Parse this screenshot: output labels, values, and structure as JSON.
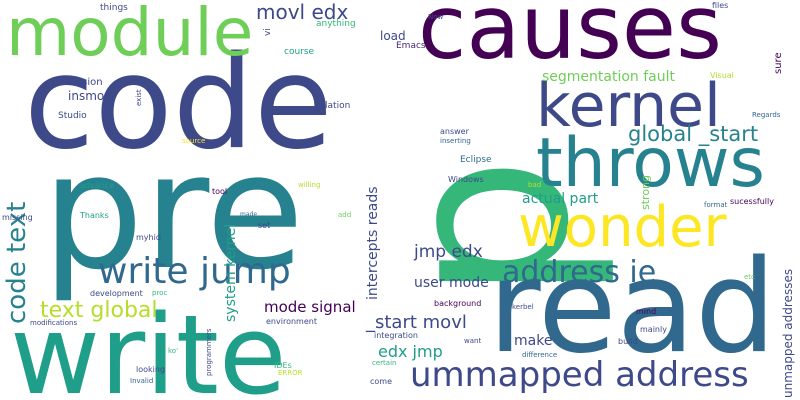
{
  "background": "#ffffff",
  "palette": {
    "dark_purple": "#440154",
    "indigo": "#482878",
    "slate_blue": "#3e4989",
    "steel_blue": "#31688e",
    "teal_blue": "#26828e",
    "teal": "#1f9e89",
    "green_teal": "#35b779",
    "green": "#6ece58",
    "lime": "#b5de2b",
    "yellow": "#fde725"
  },
  "words": [
    {
      "text": "p",
      "color": "#35b779"
    },
    {
      "text": "pre",
      "color": "#26828e"
    },
    {
      "text": "code",
      "color": "#3e4989"
    },
    {
      "text": "causes",
      "color": "#440154"
    },
    {
      "text": "write",
      "color": "#1f9e89"
    },
    {
      "text": "read",
      "color": "#31688e"
    },
    {
      "text": "module",
      "color": "#6ece58"
    },
    {
      "text": "kernel",
      "color": "#3e4989"
    },
    {
      "text": "throws",
      "color": "#26828e"
    },
    {
      "text": "wonder",
      "color": "#fde725"
    },
    {
      "text": "code text",
      "color": "#26828e"
    },
    {
      "text": "write jump",
      "color": "#31688e"
    },
    {
      "text": "address ie",
      "color": "#31688e"
    },
    {
      "text": "ummapped address",
      "color": "#3e4989"
    },
    {
      "text": "movl edx",
      "color": "#3e4989"
    },
    {
      "text": "global _start",
      "color": "#26828e"
    },
    {
      "text": "_start movl",
      "color": "#3e4989"
    },
    {
      "text": "text global",
      "color": "#b5de2b"
    },
    {
      "text": "segmentation fault",
      "color": "#6ece58"
    },
    {
      "text": "jmp edx",
      "color": "#3e4989"
    },
    {
      "text": "edx jmp",
      "color": "#1f9e89"
    },
    {
      "text": "intercepts reads",
      "color": "#3e4989"
    },
    {
      "text": "system kernel",
      "color": "#1f9e89"
    },
    {
      "text": "mode signal",
      "color": "#440154"
    },
    {
      "text": "actual part",
      "color": "#1f9e89"
    },
    {
      "text": "user mode",
      "color": "#3e4989"
    },
    {
      "text": "unmapped addresses",
      "color": "#3e4989"
    },
    {
      "text": "make",
      "color": "#3e4989"
    },
    {
      "text": "strong",
      "color": "#6ece58"
    },
    {
      "text": "load",
      "color": "#3e4989"
    },
    {
      "text": "insmod",
      "color": "#3e4989"
    },
    {
      "text": "version",
      "color": "#3e4989"
    },
    {
      "text": "Emacs",
      "color": "#482878"
    },
    {
      "text": "course",
      "color": "#1f9e89"
    },
    {
      "text": "anything",
      "color": "#35b779"
    },
    {
      "text": "things",
      "color": "#3e4989"
    },
    {
      "text": "vi",
      "color": "#3e4989"
    },
    {
      "text": "Now",
      "color": "#3e4989"
    },
    {
      "text": "files",
      "color": "#3e4989"
    },
    {
      "text": "sure",
      "color": "#440154"
    },
    {
      "text": "Visual",
      "color": "#b5de2b"
    },
    {
      "text": "exist",
      "color": "#3e4989"
    },
    {
      "text": "relation",
      "color": "#3e4989"
    },
    {
      "text": "Studio",
      "color": "#3e4989"
    },
    {
      "text": "Regards",
      "color": "#31688e"
    },
    {
      "text": "answer",
      "color": "#3e4989"
    },
    {
      "text": "inserting",
      "color": "#31688e"
    },
    {
      "text": "source",
      "color": "#fde725"
    },
    {
      "text": "Eclipse",
      "color": "#31688e"
    },
    {
      "text": "Windows",
      "color": "#3e4989"
    },
    {
      "text": "bad",
      "color": "#b5de2b"
    },
    {
      "text": "advance",
      "color": "#1f9e89"
    },
    {
      "text": "willing",
      "color": "#b5de2b"
    },
    {
      "text": "tool",
      "color": "#440154"
    },
    {
      "text": "format",
      "color": "#31688e"
    },
    {
      "text": "sucessfully",
      "color": "#440154"
    },
    {
      "text": "missing",
      "color": "#3e4989"
    },
    {
      "text": "Thanks",
      "color": "#1f9e89"
    },
    {
      "text": "made",
      "color": "#31688e"
    },
    {
      "text": "add",
      "color": "#6ece58"
    },
    {
      "text": "set",
      "color": "#3e4989"
    },
    {
      "text": "myhid",
      "color": "#3e4989"
    },
    {
      "text": "development",
      "color": "#3e4989"
    },
    {
      "text": "proc",
      "color": "#35b779"
    },
    {
      "text": "modifications",
      "color": "#3e4989"
    },
    {
      "text": "environment",
      "color": "#3e4989"
    },
    {
      "text": "background",
      "color": "#440154"
    },
    {
      "text": "etc",
      "color": "#6ece58"
    },
    {
      "text": "mind",
      "color": "#440154"
    },
    {
      "text": "kerbel",
      "color": "#3e4989"
    },
    {
      "text": "mainly",
      "color": "#3e4989"
    },
    {
      "text": "integration",
      "color": "#3e4989"
    },
    {
      "text": "build",
      "color": "#3e4989"
    },
    {
      "text": "want",
      "color": "#3e4989"
    },
    {
      "text": "ko'",
      "color": "#35b779"
    },
    {
      "text": "programmers",
      "color": "#3e4989"
    },
    {
      "text": "IDEs",
      "color": "#35b779"
    },
    {
      "text": "ERROR",
      "color": "#b5de2b"
    },
    {
      "text": "certain",
      "color": "#35b779"
    },
    {
      "text": "difference",
      "color": "#31688e"
    },
    {
      "text": "looking",
      "color": "#3e4989"
    },
    {
      "text": "Invalid",
      "color": "#31688e"
    },
    {
      "text": "come",
      "color": "#3e4989"
    }
  ]
}
